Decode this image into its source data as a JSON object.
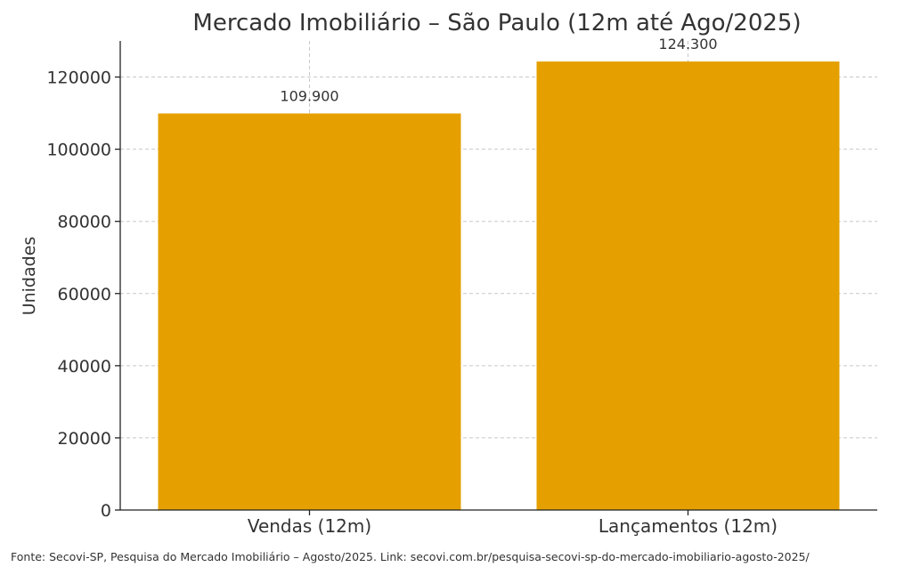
{
  "chart_data": {
    "type": "bar",
    "title": "Mercado Imobiliário – São Paulo (12m até Ago/2025)",
    "xlabel": "",
    "ylabel": "Unidades",
    "categories": [
      "Vendas (12m)",
      "Lançamentos (12m)"
    ],
    "values": [
      109900,
      124300
    ],
    "data_labels": [
      "109.900",
      "124.300"
    ],
    "ylim": [
      0,
      130000
    ],
    "yticks": [
      0,
      20000,
      40000,
      60000,
      80000,
      100000,
      120000
    ],
    "ytick_labels": [
      "0",
      "20000",
      "40000",
      "60000",
      "80000",
      "100000",
      "120000"
    ],
    "grid": true,
    "bar_color": "#e5a000",
    "footnote": "Fonte: Secovi-SP, Pesquisa do Mercado Imobiliário – Agosto/2025. Link: secovi.com.br/pesquisa-secovi-sp-do-mercado-imobiliario-agosto-2025/"
  }
}
